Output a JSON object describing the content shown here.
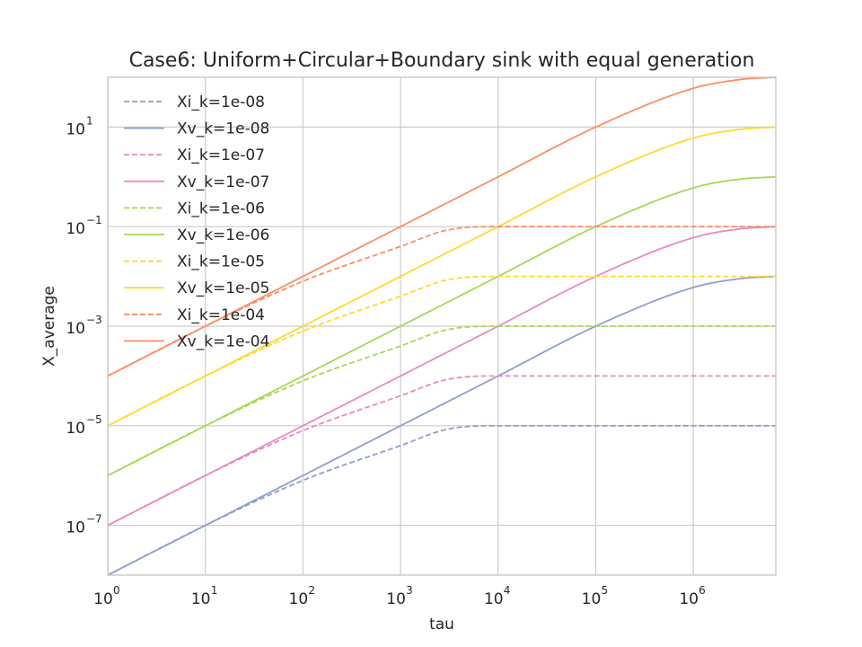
{
  "chart_data": {
    "type": "line",
    "title": "Case6: Uniform+Circular+Boundary sink with equal generation",
    "xlabel": "tau",
    "ylabel": "X_average",
    "xscale": "log",
    "yscale": "log",
    "xlim": [
      1,
      7000000
    ],
    "ylim": [
      1e-08,
      100
    ],
    "grid": true,
    "legend_position": "upper left",
    "x_ticks": [
      {
        "value": 1,
        "base": "10",
        "exp": "0"
      },
      {
        "value": 10,
        "base": "10",
        "exp": "1"
      },
      {
        "value": 100,
        "base": "10",
        "exp": "2"
      },
      {
        "value": 1000,
        "base": "10",
        "exp": "3"
      },
      {
        "value": 10000,
        "base": "10",
        "exp": "4"
      },
      {
        "value": 100000,
        "base": "10",
        "exp": "5"
      },
      {
        "value": 1000000,
        "base": "10",
        "exp": "6"
      }
    ],
    "y_ticks": [
      {
        "value": 1e-07,
        "base": "10",
        "exp": "−7"
      },
      {
        "value": 1e-05,
        "base": "10",
        "exp": "−5"
      },
      {
        "value": 0.001,
        "base": "10",
        "exp": "−3"
      },
      {
        "value": 0.1,
        "base": "10",
        "exp": "−1"
      },
      {
        "value": 10,
        "base": "10",
        "exp": "1"
      }
    ],
    "series": [
      {
        "name": "Xi_k=1e-08",
        "color": "#8da0cb",
        "dash": true,
        "x": [
          1,
          10,
          100,
          1000,
          3000,
          10000,
          100000,
          7000000
        ],
        "y": [
          1e-08,
          1e-07,
          8e-07,
          4e-06,
          8.5e-06,
          1e-05,
          1e-05,
          1e-05
        ]
      },
      {
        "name": "Xv_k=1e-08",
        "color": "#8da0cb",
        "dash": false,
        "x": [
          1,
          10,
          100,
          1000,
          10000,
          100000,
          1000000,
          3000000,
          7000000
        ],
        "y": [
          1e-08,
          1e-07,
          1e-06,
          1e-05,
          0.0001,
          0.001,
          0.006,
          0.009,
          0.01
        ]
      },
      {
        "name": "Xi_k=1e-07",
        "color": "#e78ac3",
        "dash": true,
        "x": [
          1,
          10,
          100,
          1000,
          3000,
          10000,
          100000,
          7000000
        ],
        "y": [
          1e-07,
          1e-06,
          8e-06,
          4e-05,
          8.5e-05,
          0.0001,
          0.0001,
          0.0001
        ]
      },
      {
        "name": "Xv_k=1e-07",
        "color": "#e78ac3",
        "dash": false,
        "x": [
          1,
          10,
          100,
          1000,
          10000,
          100000,
          1000000,
          3000000,
          7000000
        ],
        "y": [
          1e-07,
          1e-06,
          1e-05,
          0.0001,
          0.001,
          0.01,
          0.06,
          0.09,
          0.1
        ]
      },
      {
        "name": "Xi_k=1e-06",
        "color": "#a6d854",
        "dash": true,
        "x": [
          1,
          10,
          100,
          1000,
          3000,
          10000,
          100000,
          7000000
        ],
        "y": [
          1e-06,
          1e-05,
          8e-05,
          0.0004,
          0.00085,
          0.001,
          0.001,
          0.001
        ]
      },
      {
        "name": "Xv_k=1e-06",
        "color": "#a6d854",
        "dash": false,
        "x": [
          1,
          10,
          100,
          1000,
          10000,
          100000,
          1000000,
          3000000,
          7000000
        ],
        "y": [
          1e-06,
          1e-05,
          0.0001,
          0.001,
          0.01,
          0.1,
          0.6,
          0.9,
          1
        ]
      },
      {
        "name": "Xi_k=1e-05",
        "color": "#ffd92f",
        "dash": true,
        "x": [
          1,
          10,
          100,
          1000,
          3000,
          10000,
          100000,
          7000000
        ],
        "y": [
          1e-05,
          0.0001,
          0.0008,
          0.004,
          0.0085,
          0.01,
          0.01,
          0.01
        ]
      },
      {
        "name": "Xv_k=1e-05",
        "color": "#ffd92f",
        "dash": false,
        "x": [
          1,
          10,
          100,
          1000,
          10000,
          100000,
          1000000,
          3000000,
          7000000
        ],
        "y": [
          1e-05,
          0.0001,
          0.001,
          0.01,
          0.1,
          1,
          6,
          9,
          10
        ]
      },
      {
        "name": "Xi_k=1e-04",
        "color": "#fc8d62",
        "dash": true,
        "x": [
          1,
          10,
          100,
          1000,
          3000,
          10000,
          100000,
          7000000
        ],
        "y": [
          0.0001,
          0.001,
          0.008,
          0.04,
          0.085,
          0.1,
          0.1,
          0.1
        ]
      },
      {
        "name": "Xv_k=1e-04",
        "color": "#fc8d62",
        "dash": false,
        "x": [
          1,
          10,
          100,
          1000,
          10000,
          100000,
          1000000,
          3000000,
          7000000
        ],
        "y": [
          0.0001,
          0.001,
          0.01,
          0.1,
          1,
          10,
          60,
          90,
          100
        ]
      }
    ]
  }
}
